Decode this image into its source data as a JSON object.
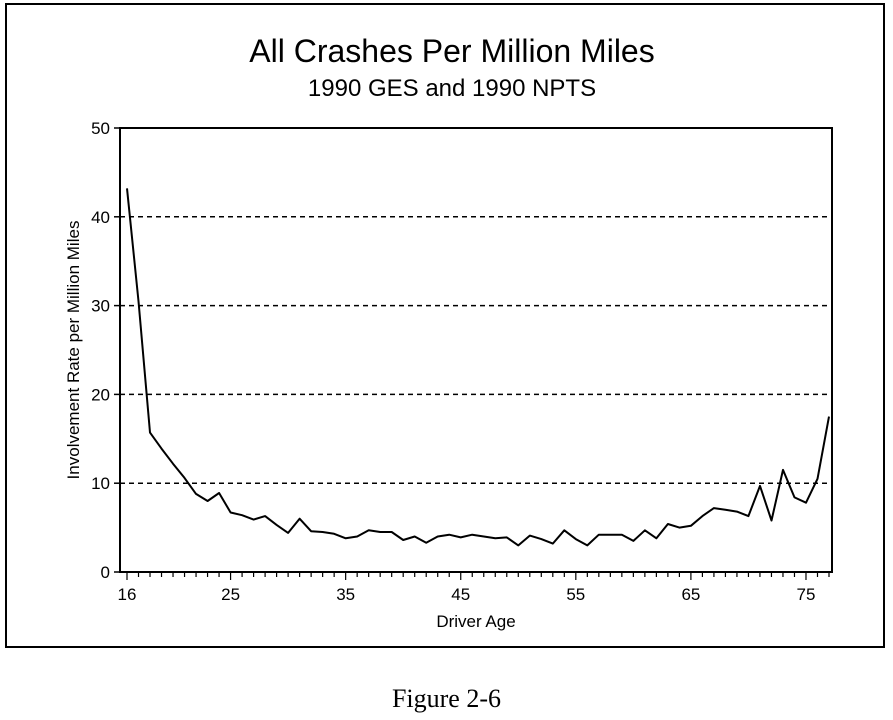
{
  "figure_caption": "Figure 2-6",
  "chart_data": {
    "type": "line",
    "title": "All Crashes Per Million Miles",
    "subtitle": "1990 GES and 1990 NPTS",
    "xlabel": "Driver Age",
    "ylabel": "Involvement Rate per Million Miles",
    "xlim": [
      16,
      77
    ],
    "ylim": [
      0,
      50
    ],
    "x_ticks": [
      16,
      25,
      35,
      45,
      55,
      65,
      75
    ],
    "y_ticks": [
      0,
      10,
      20,
      30,
      40,
      50
    ],
    "grid": "horizontal dashed at 10, 20, 30, 40",
    "line_color": "#000000",
    "series": [
      {
        "x": [
          16,
          17,
          18,
          19,
          20,
          21,
          22,
          23,
          24,
          25,
          26,
          27,
          28,
          29,
          30,
          31,
          32,
          33,
          34,
          35,
          36,
          37,
          38,
          39,
          40,
          41,
          42,
          43,
          44,
          45,
          46,
          47,
          48,
          49,
          50,
          51,
          52,
          53,
          54,
          55,
          56,
          57,
          58,
          59,
          60,
          61,
          62,
          63,
          64,
          65,
          66,
          67,
          68,
          69,
          70,
          71,
          72,
          73,
          74,
          75,
          76,
          77
        ],
        "values": [
          43.2,
          30.5,
          15.7,
          13.9,
          12.2,
          10.6,
          8.8,
          8.0,
          8.9,
          6.7,
          6.4,
          5.9,
          6.3,
          5.3,
          4.4,
          6.0,
          4.6,
          4.5,
          4.3,
          3.8,
          4.0,
          4.7,
          4.5,
          4.5,
          3.6,
          4.0,
          3.3,
          4.0,
          4.2,
          3.9,
          4.2,
          4.0,
          3.8,
          3.9,
          3.0,
          4.1,
          3.7,
          3.2,
          4.7,
          3.7,
          3.0,
          4.2,
          4.2,
          4.2,
          3.5,
          4.7,
          3.8,
          5.4,
          5.0,
          5.2,
          6.3,
          7.2,
          7.0,
          6.8,
          6.3,
          9.7,
          5.8,
          11.5,
          8.4,
          7.8,
          10.5,
          17.5
        ]
      }
    ]
  }
}
